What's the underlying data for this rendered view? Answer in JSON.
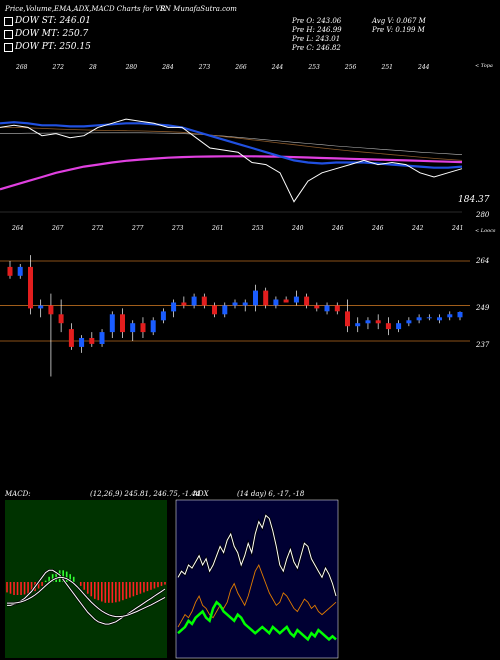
{
  "header": {
    "title_left": "Price,Volume,EMA,ADX,MACD Charts for VR",
    "title_right": "SN  MunafaSutra.com"
  },
  "legend": [
    {
      "label": "DOW ST: 246.01",
      "color": "#0033cc"
    },
    {
      "label": "DOW MT: 250.7",
      "color": "#000000"
    },
    {
      "label": "DOW PT: 250.15",
      "color": "#ff33ff"
    }
  ],
  "info": {
    "pre_o": "Pre  O: 243.06",
    "pre_h": "Pre  H: 246.99",
    "pre_l": "Pre  L: 243.01",
    "pre_c": "Pre  C: 246.82",
    "avg_v": "Avg V: 0.067 M",
    "pre_v": "Pre  V: 0.199 M"
  },
  "ema_panel": {
    "tag": "< Topa",
    "price_label": "184.37",
    "top_labels": [
      "268",
      "272",
      "28",
      "280",
      "284",
      "273",
      "266",
      "244",
      "253",
      "256",
      "251",
      "244"
    ],
    "bottom_labels": [
      "264",
      "267",
      "272",
      "277",
      "273",
      "261",
      "253",
      "240",
      "246",
      "246",
      "242",
      "241"
    ],
    "series": {
      "price": [
        262,
        263,
        262,
        258,
        259,
        257,
        258,
        262,
        264,
        266,
        265,
        264,
        262,
        262,
        257,
        252,
        251,
        250,
        245,
        244,
        240,
        226,
        236,
        240,
        242,
        244,
        246,
        244,
        245,
        244,
        240,
        238,
        240,
        242
      ],
      "ema_blue": [
        264,
        264.5,
        264,
        263,
        263,
        262.5,
        262.5,
        263,
        263.5,
        264,
        264,
        263.5,
        263,
        262,
        260,
        258,
        256,
        254,
        252,
        250,
        248,
        246,
        245,
        244.5,
        245,
        245,
        245,
        244.5,
        244,
        243.5,
        243,
        242.5,
        242.5,
        243
      ],
      "ema_brown": [
        262,
        262,
        261.8,
        261.5,
        261.2,
        261,
        260.8,
        260.6,
        260.5,
        260.4,
        260.3,
        260.1,
        259.9,
        259.6,
        259,
        258.3,
        257.5,
        256.8,
        256,
        255.2,
        254.4,
        253.6,
        252.8,
        252,
        251.3,
        250.6,
        250,
        249.4,
        248.8,
        248.2,
        247.6,
        247,
        246.5,
        246
      ],
      "ema_grey": [
        259,
        259.1,
        259.2,
        259.2,
        259.3,
        259.3,
        259.3,
        259.4,
        259.4,
        259.4,
        259.4,
        259.3,
        259.2,
        259,
        258.7,
        258.3,
        257.8,
        257.2,
        256.6,
        256,
        255.4,
        254.8,
        254.2,
        253.6,
        253,
        252.5,
        252,
        251.5,
        251,
        250.5,
        250,
        249.6,
        249.2,
        248.8
      ],
      "ema_magenta": [
        232,
        234,
        236,
        238,
        240,
        241.5,
        243,
        244,
        245,
        245.8,
        246.4,
        246.9,
        247.3,
        247.6,
        247.8,
        247.9,
        248,
        248,
        248,
        247.9,
        247.8,
        247.6,
        247.4,
        247.2,
        247,
        246.8,
        246.6,
        246.4,
        246.2,
        246,
        245.8,
        245.6,
        245.4,
        245.2
      ]
    }
  },
  "candle_panel": {
    "tag": "< Loocs",
    "top_value": "280",
    "levels": [
      "264",
      "249",
      "237"
    ],
    "labels": [
      "264",
      "267",
      "272",
      "277",
      "273",
      "261",
      "253",
      "240",
      "246",
      "246",
      "242",
      "241"
    ],
    "candles": [
      {
        "o": 262,
        "h": 264,
        "l": 258,
        "c": 259
      },
      {
        "o": 259,
        "h": 263,
        "l": 258,
        "c": 262
      },
      {
        "o": 262,
        "h": 266,
        "l": 246,
        "c": 248
      },
      {
        "o": 248,
        "h": 251,
        "l": 245,
        "c": 249
      },
      {
        "o": 249,
        "h": 253,
        "l": 225,
        "c": 246
      },
      {
        "o": 246,
        "h": 251,
        "l": 240,
        "c": 243
      },
      {
        "o": 241,
        "h": 243,
        "l": 234,
        "c": 235
      },
      {
        "o": 235,
        "h": 239,
        "l": 233,
        "c": 238
      },
      {
        "o": 238,
        "h": 240,
        "l": 235,
        "c": 236
      },
      {
        "o": 236,
        "h": 241,
        "l": 235,
        "c": 240
      },
      {
        "o": 240,
        "h": 247,
        "l": 238,
        "c": 246
      },
      {
        "o": 246,
        "h": 248,
        "l": 238,
        "c": 240
      },
      {
        "o": 240,
        "h": 244,
        "l": 237,
        "c": 243
      },
      {
        "o": 243,
        "h": 245,
        "l": 238,
        "c": 240
      },
      {
        "o": 240,
        "h": 245,
        "l": 239,
        "c": 244
      },
      {
        "o": 244,
        "h": 248,
        "l": 243,
        "c": 247
      },
      {
        "o": 247,
        "h": 251,
        "l": 245,
        "c": 250
      },
      {
        "o": 250,
        "h": 252,
        "l": 248,
        "c": 249
      },
      {
        "o": 249,
        "h": 253,
        "l": 248,
        "c": 252
      },
      {
        "o": 252,
        "h": 253,
        "l": 248,
        "c": 249
      },
      {
        "o": 249,
        "h": 250,
        "l": 245,
        "c": 246
      },
      {
        "o": 246,
        "h": 250,
        "l": 245,
        "c": 249
      },
      {
        "o": 249,
        "h": 251,
        "l": 248,
        "c": 250
      },
      {
        "o": 249,
        "h": 251,
        "l": 247,
        "c": 250
      },
      {
        "o": 249,
        "h": 256,
        "l": 247,
        "c": 254
      },
      {
        "o": 254,
        "h": 255,
        "l": 248,
        "c": 249
      },
      {
        "o": 249,
        "h": 252,
        "l": 248,
        "c": 251
      },
      {
        "o": 251,
        "h": 252,
        "l": 250,
        "c": 250
      },
      {
        "o": 250,
        "h": 254,
        "l": 249,
        "c": 252
      },
      {
        "o": 252,
        "h": 253,
        "l": 248,
        "c": 249
      },
      {
        "o": 249,
        "h": 250,
        "l": 247,
        "c": 248
      },
      {
        "o": 247,
        "h": 250,
        "l": 246,
        "c": 249
      },
      {
        "o": 249,
        "h": 250,
        "l": 246,
        "c": 247
      },
      {
        "o": 247,
        "h": 251,
        "l": 240,
        "c": 242
      },
      {
        "o": 242,
        "h": 245,
        "l": 240,
        "c": 243
      },
      {
        "o": 243,
        "h": 245,
        "l": 241,
        "c": 244
      },
      {
        "o": 244,
        "h": 246,
        "l": 241,
        "c": 243
      },
      {
        "o": 243,
        "h": 245,
        "l": 239,
        "c": 241
      },
      {
        "o": 241,
        "h": 244,
        "l": 240,
        "c": 243
      },
      {
        "o": 243,
        "h": 245,
        "l": 242,
        "c": 244
      },
      {
        "o": 244,
        "h": 246,
        "l": 243,
        "c": 245
      },
      {
        "o": 245,
        "h": 246,
        "l": 244,
        "c": 245
      },
      {
        "o": 244,
        "h": 246,
        "l": 243,
        "c": 245
      },
      {
        "o": 245,
        "h": 247,
        "l": 244,
        "c": 246
      },
      {
        "o": 245,
        "h": 247,
        "l": 244,
        "c": 246.8
      }
    ]
  },
  "macd_panel": {
    "title": "MACD:",
    "params": "(12,26,9) 245.81, 246.75, -1.44",
    "histogram": [
      -4,
      -4.5,
      -5,
      -5,
      -5,
      -4.8,
      -4.5,
      -4,
      -3.5,
      -2.5,
      -1.5,
      0.5,
      2,
      3,
      4,
      4.5,
      4.5,
      4,
      3,
      2,
      0,
      -1.5,
      -3,
      -4.5,
      -5.5,
      -6.5,
      -7,
      -7.5,
      -8,
      -8,
      -8,
      -7.8,
      -7.5,
      -7,
      -6.5,
      -6,
      -5.5,
      -5,
      -4.5,
      -4,
      -3.5,
      -3,
      -2.5,
      -2,
      -1.5,
      -1
    ],
    "macd": [
      -10,
      -10,
      -9.5,
      -9,
      -8,
      -7,
      -5.5,
      -4,
      -2,
      0,
      2,
      4,
      5,
      5,
      4,
      3,
      1,
      -1,
      -3,
      -5,
      -7,
      -9,
      -11,
      -13,
      -14.5,
      -16,
      -17,
      -17.5,
      -18,
      -18,
      -17.5,
      -17,
      -16,
      -15,
      -14,
      -13,
      -12,
      -11,
      -10,
      -9,
      -8,
      -7,
      -6,
      -5,
      -4,
      -3
    ],
    "signal": [
      -9,
      -9,
      -9,
      -8.8,
      -8.5,
      -8,
      -7.3,
      -6.5,
      -5.5,
      -4.3,
      -3,
      -1.6,
      -0.3,
      0.8,
      1.6,
      2,
      1.9,
      1.4,
      0.5,
      -0.6,
      -2,
      -3.6,
      -5.3,
      -7,
      -8.6,
      -10,
      -11.3,
      -12.4,
      -13.3,
      -14,
      -14.5,
      -14.8,
      -14.8,
      -14.6,
      -14.3,
      -13.8,
      -13.2,
      -12.6,
      -11.9,
      -11.2,
      -10.5,
      -9.8,
      -9,
      -8.2,
      -7.4,
      -6.6
    ]
  },
  "adx_panel": {
    "title": "ADX",
    "params": "(14 day) 6, -17, -18",
    "adx": [
      26,
      28,
      27,
      30,
      29,
      31,
      33,
      30,
      32,
      28,
      30,
      33,
      36,
      34,
      38,
      40,
      36,
      34,
      30,
      33,
      37,
      34,
      40,
      44,
      42,
      46,
      45,
      41,
      36,
      30,
      28,
      32,
      35,
      31,
      29,
      33,
      37,
      36,
      32,
      30,
      28,
      26,
      29,
      27,
      24,
      20
    ],
    "plus_di": [
      8,
      9,
      10,
      12,
      11,
      13,
      14,
      15,
      13,
      12,
      16,
      18,
      17,
      15,
      14,
      13,
      12,
      14,
      13,
      11,
      10,
      9,
      8,
      9,
      10,
      9,
      8,
      10,
      9,
      8,
      9,
      10,
      8,
      7,
      9,
      8,
      7,
      6,
      8,
      7,
      9,
      8,
      7,
      6,
      7,
      6
    ],
    "minus_di": [
      10,
      12,
      14,
      13,
      15,
      18,
      20,
      17,
      16,
      14,
      13,
      15,
      17,
      16,
      18,
      22,
      24,
      21,
      19,
      17,
      20,
      24,
      28,
      30,
      27,
      24,
      21,
      19,
      17,
      18,
      21,
      20,
      18,
      16,
      15,
      17,
      19,
      18,
      16,
      17,
      15,
      14,
      15,
      16,
      17,
      18
    ]
  },
  "colors": {
    "up_candle": "#1a5cff",
    "down_candle": "#e31e1e",
    "ema_blue": "#2050e0",
    "ema_brown": "#8b5a2b",
    "ema_magenta": "#e040e0",
    "level_line": "#b86b1f",
    "macd_bg": "#003300",
    "adx_bg": "#000033",
    "adx_plus": "#00ff00",
    "adx_minus": "#e07b00"
  }
}
